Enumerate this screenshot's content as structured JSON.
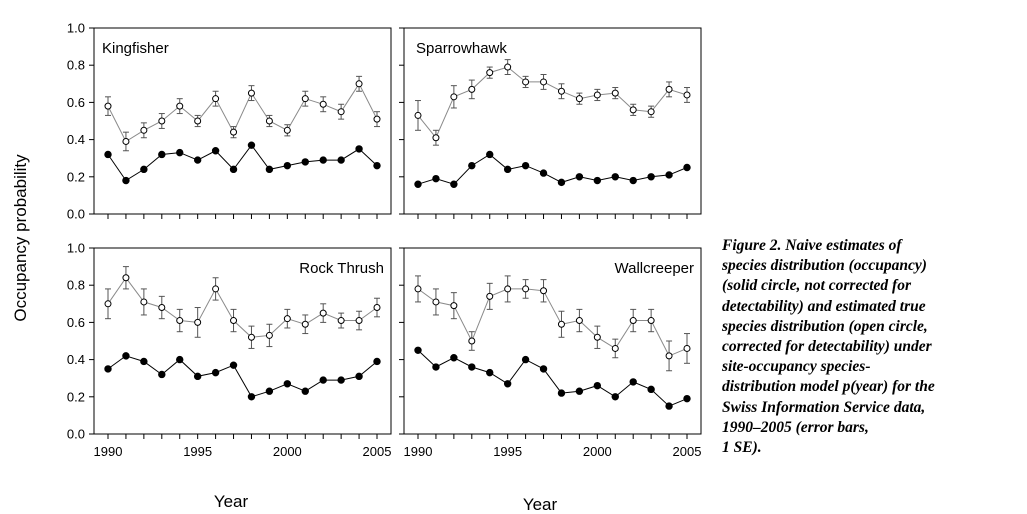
{
  "chart_data": {
    "type": "line",
    "ylabel": "Occupancy probability",
    "xlabel": "Year",
    "ylim": [
      0,
      1
    ],
    "yticks": [
      "0.0",
      "0.2",
      "0.4",
      "0.6",
      "0.8",
      "1.0"
    ],
    "xticks": [
      "1990",
      "1995",
      "2000",
      "2005"
    ],
    "x": [
      1990,
      1991,
      1992,
      1993,
      1994,
      1995,
      1996,
      1997,
      1998,
      1999,
      2000,
      2001,
      2002,
      2003,
      2004,
      2005
    ],
    "grid": false,
    "panels": [
      {
        "title": "Kingfisher",
        "series": [
          {
            "marker": "open-circle",
            "values": [
              0.58,
              0.39,
              0.45,
              0.5,
              0.58,
              0.5,
              0.62,
              0.44,
              0.65,
              0.5,
              0.45,
              0.62,
              0.59,
              0.55,
              0.7,
              0.51
            ],
            "se": [
              0.05,
              0.05,
              0.04,
              0.04,
              0.04,
              0.03,
              0.04,
              0.03,
              0.04,
              0.03,
              0.03,
              0.04,
              0.04,
              0.04,
              0.04,
              0.04
            ]
          },
          {
            "marker": "solid-circle",
            "values": [
              0.32,
              0.18,
              0.24,
              0.32,
              0.33,
              0.29,
              0.34,
              0.24,
              0.37,
              0.24,
              0.26,
              0.28,
              0.29,
              0.29,
              0.35,
              0.26
            ]
          }
        ]
      },
      {
        "title": "Sparrowhawk",
        "series": [
          {
            "marker": "open-circle",
            "values": [
              0.53,
              0.41,
              0.63,
              0.67,
              0.76,
              0.79,
              0.71,
              0.71,
              0.66,
              0.62,
              0.64,
              0.65,
              0.56,
              0.55,
              0.67,
              0.64
            ],
            "se": [
              0.08,
              0.04,
              0.06,
              0.05,
              0.03,
              0.04,
              0.03,
              0.04,
              0.04,
              0.03,
              0.03,
              0.03,
              0.03,
              0.03,
              0.04,
              0.04
            ]
          },
          {
            "marker": "solid-circle",
            "values": [
              0.16,
              0.19,
              0.16,
              0.26,
              0.32,
              0.24,
              0.26,
              0.22,
              0.17,
              0.2,
              0.18,
              0.2,
              0.18,
              0.2,
              0.21,
              0.25
            ]
          }
        ]
      },
      {
        "title": "Rock Thrush",
        "series": [
          {
            "marker": "open-circle",
            "values": [
              0.7,
              0.84,
              0.71,
              0.68,
              0.61,
              0.6,
              0.78,
              0.61,
              0.52,
              0.53,
              0.62,
              0.59,
              0.65,
              0.61,
              0.61,
              0.68
            ],
            "se": [
              0.08,
              0.06,
              0.07,
              0.06,
              0.06,
              0.08,
              0.06,
              0.06,
              0.06,
              0.06,
              0.05,
              0.05,
              0.05,
              0.04,
              0.05,
              0.05
            ]
          },
          {
            "marker": "solid-circle",
            "values": [
              0.35,
              0.42,
              0.39,
              0.32,
              0.4,
              0.31,
              0.33,
              0.37,
              0.2,
              0.23,
              0.27,
              0.23,
              0.29,
              0.29,
              0.31,
              0.39
            ]
          }
        ]
      },
      {
        "title": "Wallcreeper",
        "series": [
          {
            "marker": "open-circle",
            "values": [
              0.78,
              0.71,
              0.69,
              0.5,
              0.74,
              0.78,
              0.78,
              0.77,
              0.59,
              0.61,
              0.52,
              0.46,
              0.61,
              0.61,
              0.42,
              0.46
            ],
            "se": [
              0.07,
              0.07,
              0.07,
              0.05,
              0.07,
              0.07,
              0.05,
              0.06,
              0.07,
              0.06,
              0.06,
              0.05,
              0.06,
              0.06,
              0.08,
              0.08
            ]
          },
          {
            "marker": "solid-circle",
            "values": [
              0.45,
              0.36,
              0.41,
              0.36,
              0.33,
              0.27,
              0.4,
              0.35,
              0.22,
              0.23,
              0.26,
              0.2,
              0.28,
              0.24,
              0.15,
              0.19
            ]
          }
        ]
      }
    ]
  },
  "caption": {
    "lines": [
      "Figure 2.  Naive estimates of",
      "species distribution (occupancy)",
      "(solid circle, not corrected for",
      "detectability) and estimated true",
      "species distribution (open circle,",
      "corrected for detectability) under",
      "site-occupancy species-",
      "distribution model p(year) for the",
      "Swiss Information Service data,",
      "1990–2005 (error bars,",
      "1 SE)."
    ]
  }
}
